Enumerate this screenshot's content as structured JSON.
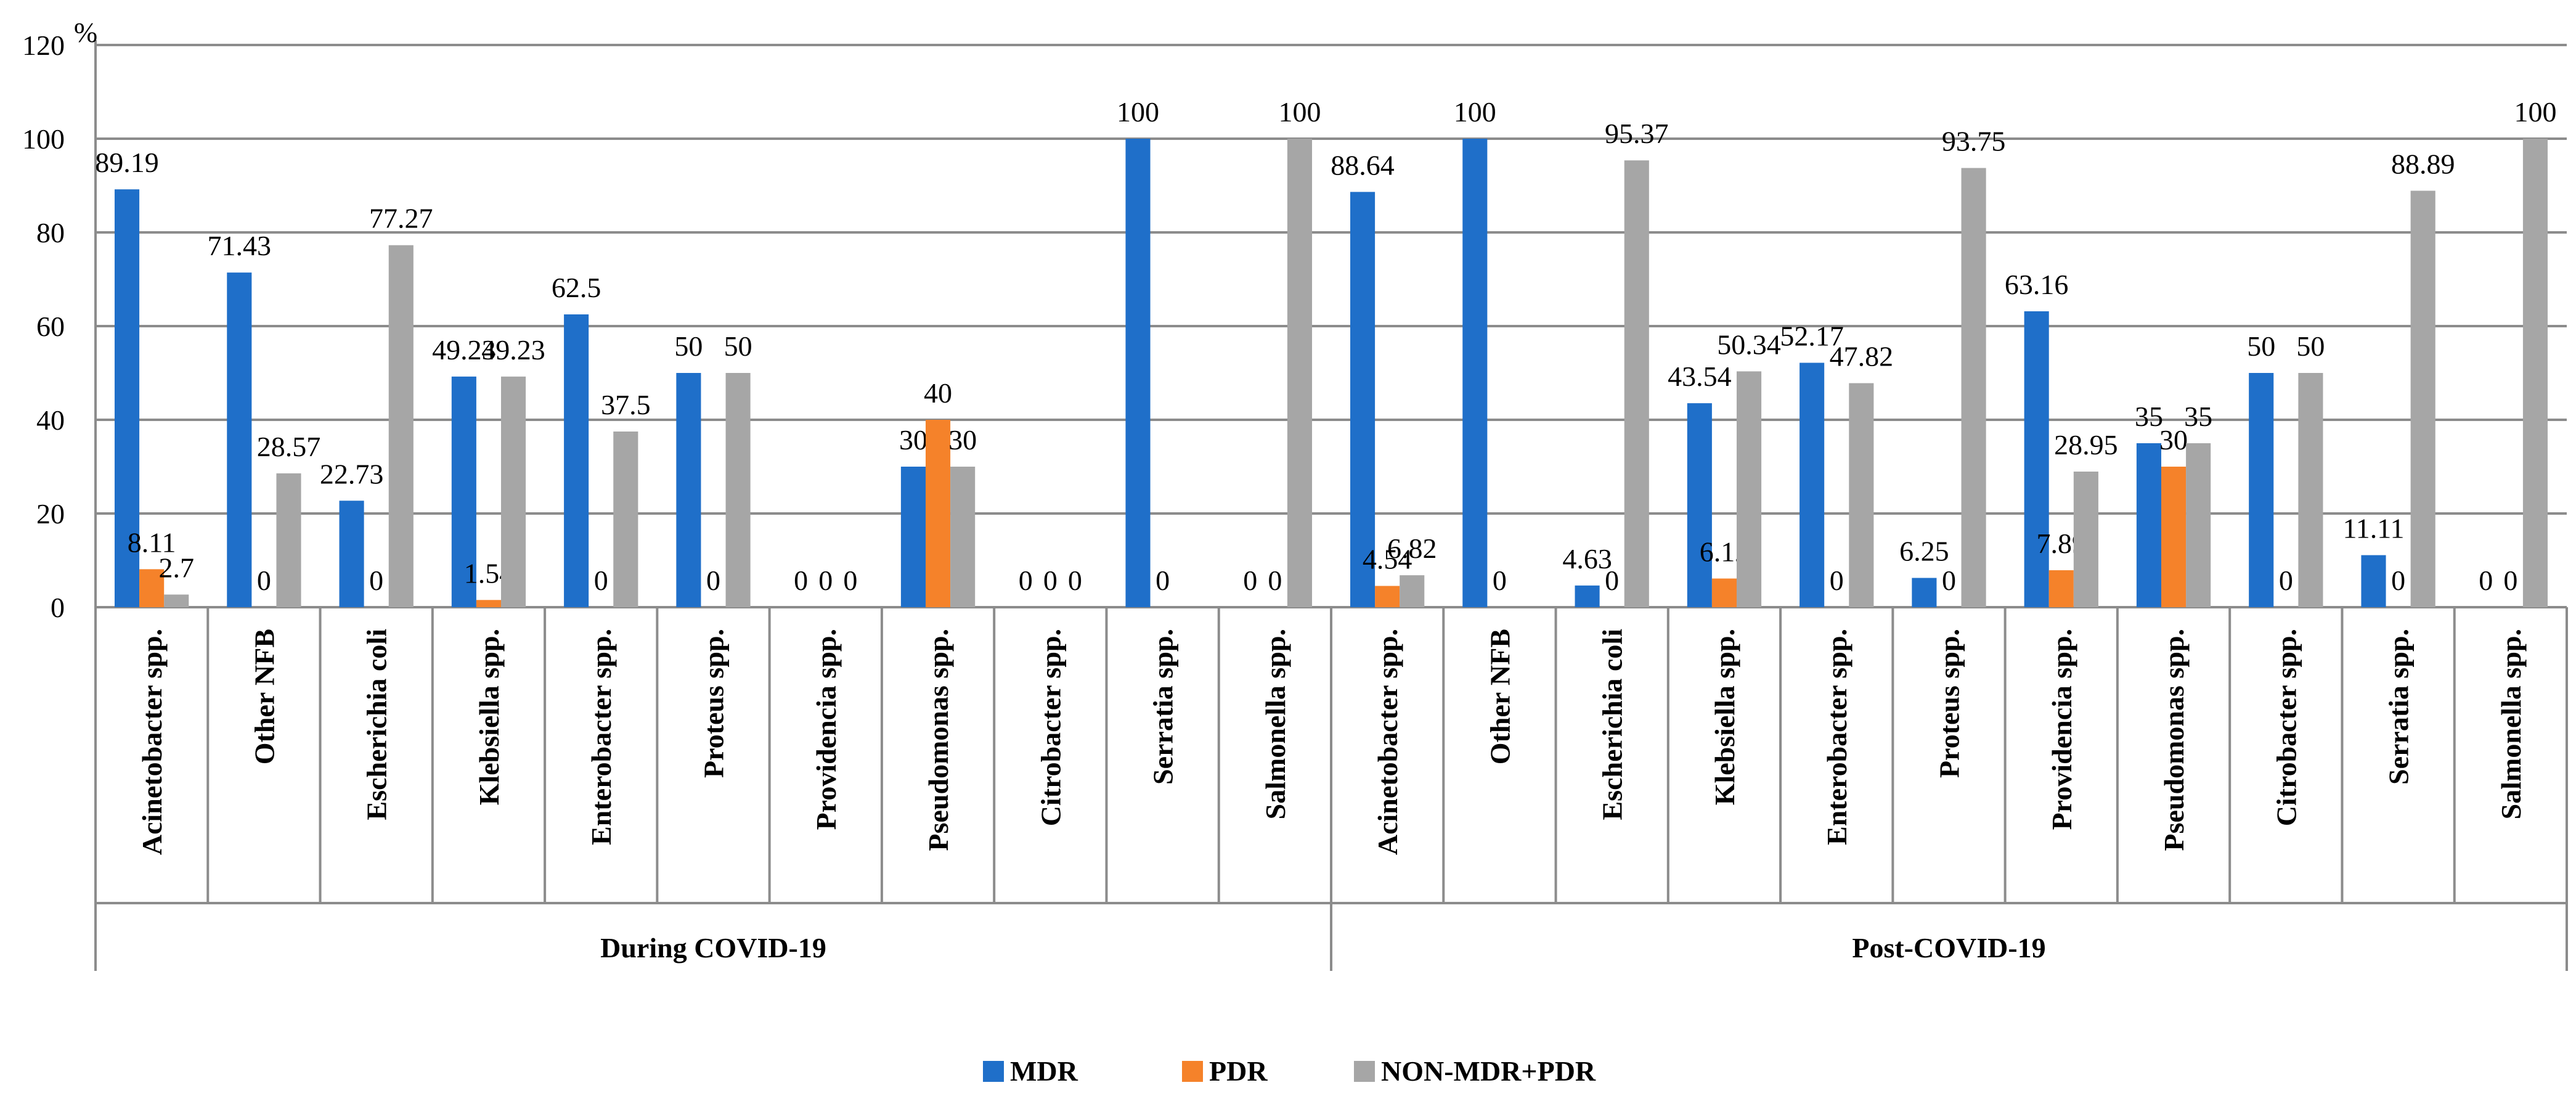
{
  "chart_data": {
    "type": "bar",
    "ylabel": "%",
    "ylim": [
      0,
      120
    ],
    "yticks": [
      0,
      20,
      40,
      60,
      80,
      100,
      120
    ],
    "grid": true,
    "legend_position": "bottom",
    "groups": [
      {
        "name": "During COVID-19",
        "categories": [
          "Acinetobacter spp.",
          "Other NFB",
          "Escherichia coli",
          "Klebsiella spp.",
          "Enterobacter spp.",
          "Proteus spp.",
          "Providencia spp.",
          "Pseudomonas spp.",
          "Citrobacter spp.",
          "Serratia spp.",
          "Salmonella spp."
        ]
      },
      {
        "name": "Post-COVID-19",
        "categories": [
          "Acinetobacter spp.",
          "Other NFB",
          "Escherichia coli",
          "Klebsiella spp.",
          "Enterobacter spp.",
          "Proteus spp.",
          "Providencia spp.",
          "Pseudomonas spp.",
          "Citrobacter spp.",
          "Serratia spp.",
          "Salmonella spp."
        ]
      }
    ],
    "series": [
      {
        "name": "MDR",
        "color": "#1f6fc9",
        "values": [
          89.19,
          71.43,
          22.73,
          49.23,
          62.5,
          50,
          null,
          30,
          null,
          100,
          0,
          88.64,
          100,
          4.63,
          43.54,
          52.17,
          6.25,
          63.16,
          35,
          50,
          11.11,
          0
        ],
        "labels": [
          "89.19",
          "71.43",
          "22.73",
          "49.23",
          "62.5",
          "50",
          "0",
          "30",
          "0",
          "100",
          "0",
          "88.64",
          "100",
          "4.63",
          "43.54",
          "52.17",
          "6.25",
          "63.16",
          "35",
          "50",
          "11.11",
          "0"
        ]
      },
      {
        "name": "PDR",
        "color": "#f5822a",
        "values": [
          8.11,
          0,
          0,
          1.54,
          0,
          0,
          null,
          40,
          null,
          0,
          0,
          4.54,
          0,
          0,
          6.12,
          0,
          0,
          7.89,
          30,
          0,
          0,
          0
        ],
        "labels": [
          "8.11",
          "0",
          "0",
          "1.54",
          "0",
          "0",
          "0",
          "40",
          "0",
          "0",
          "0",
          "4.54",
          "0",
          "0",
          "6.12",
          "0",
          "0",
          "7.89",
          "30",
          "0",
          "0",
          "0"
        ]
      },
      {
        "name": "NON-MDR+PDR",
        "color": "#a6a6a6",
        "values": [
          2.7,
          28.57,
          77.27,
          49.23,
          37.5,
          50,
          null,
          30,
          null,
          null,
          100,
          6.82,
          null,
          95.37,
          50.34,
          47.82,
          93.75,
          28.95,
          35,
          50,
          88.89,
          100
        ],
        "labels": [
          "2.7",
          "28.57",
          "77.27",
          "49.23",
          "37.5",
          "50",
          "0",
          "30",
          "0",
          "",
          "100",
          "6.82",
          "",
          "95.37",
          "50.34",
          "47.82",
          "93.75",
          "28.95",
          "35",
          "50",
          "88.89",
          "100"
        ]
      }
    ]
  }
}
